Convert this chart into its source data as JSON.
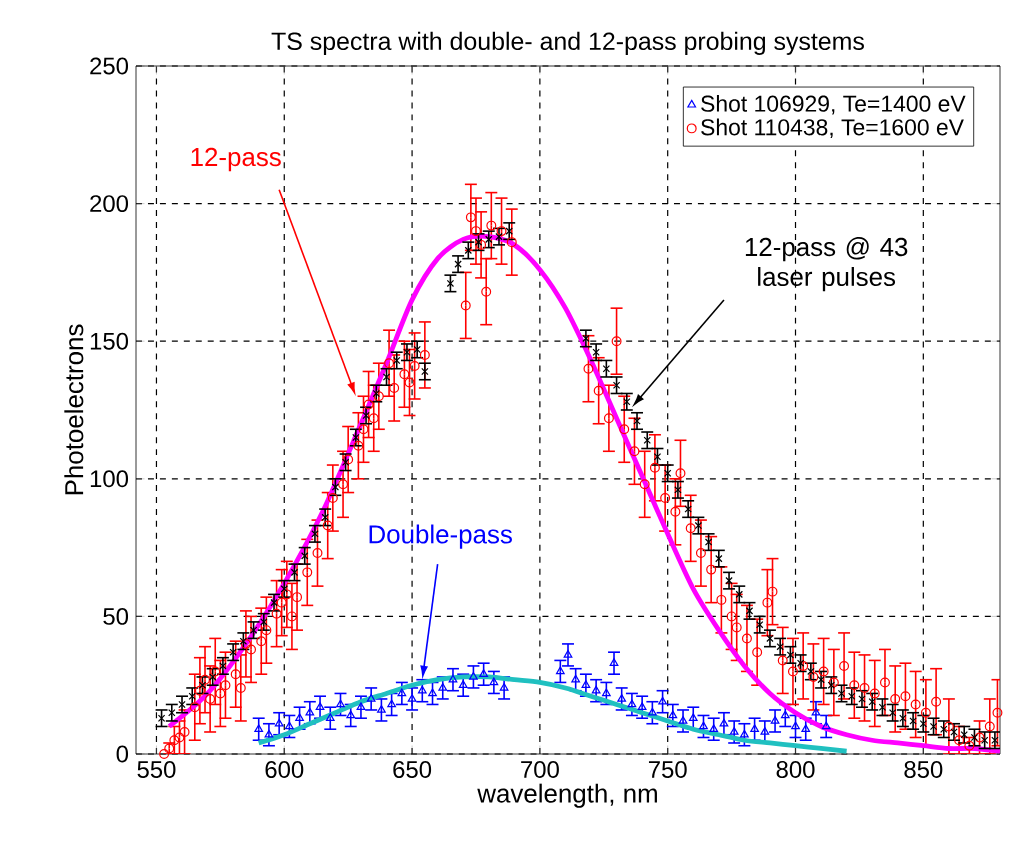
{
  "chart_data": {
    "type": "scatter",
    "title": "TS spectra with double- and 12-pass probing systems",
    "xlabel": "wavelength, nm",
    "ylabel": "Photoelectrons",
    "xlim": [
      542,
      880
    ],
    "ylim": [
      0,
      250
    ],
    "xticks": [
      550,
      600,
      650,
      700,
      750,
      800,
      850
    ],
    "yticks": [
      0,
      50,
      100,
      150,
      200,
      250
    ],
    "grid": true,
    "legend": "top right",
    "series": [
      {
        "name": "Shot 106929, Te=1400 eV",
        "marker": "triangle",
        "color": "#0000ff",
        "x": [
          590,
          594,
          598,
          602,
          606,
          610,
          614,
          618,
          622,
          626,
          630,
          634,
          638,
          642,
          646,
          650,
          654,
          658,
          662,
          666,
          670,
          674,
          678,
          682,
          686,
          708,
          711,
          714,
          718,
          722,
          726,
          729,
          732,
          736,
          740,
          744,
          748,
          752,
          756,
          760,
          764,
          768,
          772,
          776,
          780,
          784,
          788,
          792,
          796,
          800,
          804,
          808,
          812
        ],
        "values": [
          9,
          7,
          11,
          10,
          13,
          15,
          17,
          13,
          18,
          14,
          17,
          20,
          16,
          18,
          22,
          20,
          23,
          22,
          24,
          27,
          25,
          28,
          29,
          26,
          24,
          30,
          36,
          27,
          25,
          23,
          22,
          33,
          20,
          18,
          17,
          15,
          19,
          14,
          12,
          13,
          10,
          9,
          11,
          8,
          7,
          9,
          8,
          12,
          14,
          10,
          9,
          15,
          10
        ],
        "errors": [
          4,
          4,
          4,
          4,
          4,
          4,
          4,
          4,
          4,
          4,
          4,
          4,
          4,
          4,
          4,
          4,
          4,
          4,
          4,
          4,
          4,
          4,
          4,
          4,
          4,
          4,
          4,
          4,
          4,
          4,
          4,
          4,
          4,
          4,
          4,
          4,
          4,
          4,
          4,
          4,
          4,
          4,
          4,
          4,
          4,
          4,
          4,
          4,
          4,
          4,
          4,
          4,
          4
        ]
      },
      {
        "name": "Shot 110438, Te=1600 eV",
        "marker": "circle",
        "color": "#ff0000",
        "x": [
          553,
          555,
          557,
          559,
          561,
          565,
          567,
          569,
          571,
          573,
          575,
          577,
          581,
          583,
          585,
          587,
          591,
          593,
          597,
          599,
          601,
          603,
          605,
          609,
          613,
          617,
          619,
          623,
          625,
          629,
          631,
          633,
          635,
          637,
          641,
          643,
          647,
          649,
          651,
          655,
          671,
          673,
          675,
          677,
          679,
          681,
          685,
          689,
          719,
          723,
          727,
          730,
          733,
          737,
          741,
          745,
          749,
          753,
          755,
          759,
          763,
          767,
          771,
          775,
          777,
          781,
          785,
          789,
          791,
          795,
          799,
          803,
          807,
          811,
          815,
          819,
          823,
          827,
          831,
          835,
          839,
          843,
          847,
          851,
          855,
          860,
          864,
          868,
          872,
          876,
          879
        ],
        "values": [
          0,
          2,
          5,
          6,
          8,
          17,
          23,
          27,
          20,
          30,
          22,
          25,
          29,
          24,
          40,
          38,
          41,
          45,
          51,
          55,
          58,
          50,
          57,
          66,
          73,
          83,
          93,
          98,
          107,
          112,
          118,
          127,
          122,
          130,
          142,
          133,
          138,
          135,
          141,
          145,
          163,
          195,
          190,
          185,
          168,
          192,
          190,
          186,
          140,
          132,
          122,
          150,
          118,
          110,
          98,
          104,
          93,
          88,
          102,
          82,
          73,
          67,
          56,
          50,
          46,
          42,
          37,
          55,
          59,
          34,
          30,
          32,
          28,
          30,
          26,
          32,
          25,
          24,
          22,
          26,
          20,
          21,
          18,
          15,
          19,
          10,
          5,
          3,
          6,
          10,
          15
        ],
        "errors": [
          null,
          2,
          5,
          6,
          8,
          12,
          12,
          12,
          12,
          12,
          12,
          12,
          12,
          12,
          12,
          12,
          12,
          12,
          12,
          12,
          12,
          12,
          12,
          12,
          12,
          12,
          12,
          12,
          12,
          12,
          12,
          12,
          12,
          12,
          12,
          12,
          12,
          12,
          12,
          12,
          12,
          12,
          12,
          12,
          12,
          12,
          12,
          12,
          12,
          12,
          12,
          12,
          12,
          12,
          12,
          12,
          12,
          12,
          12,
          12,
          12,
          12,
          12,
          12,
          12,
          12,
          12,
          12,
          12,
          12,
          12,
          12,
          12,
          12,
          12,
          12,
          12,
          12,
          12,
          12,
          12,
          12,
          12,
          12,
          12,
          10,
          5,
          3,
          6,
          10,
          12
        ]
      },
      {
        "type": "line",
        "color": "#ff00ff",
        "x": [
          555,
          570,
          585,
          600,
          615,
          630,
          640,
          650,
          660,
          670,
          680,
          690,
          700,
          710,
          720,
          730,
          740,
          750,
          760,
          770,
          780,
          790,
          800,
          810,
          820,
          830,
          840,
          850,
          860,
          870,
          880
        ],
        "values": [
          10,
          22,
          40,
          62,
          88,
          120,
          142,
          165,
          180,
          187,
          188,
          185,
          176,
          162,
          143,
          122,
          101,
          80,
          60,
          45,
          32,
          22,
          15,
          10,
          7,
          5,
          4,
          3,
          2,
          2,
          1
        ]
      },
      {
        "marker": "cross",
        "color": "#000000",
        "x": [
          552,
          556,
          560,
          564,
          568,
          572,
          576,
          580,
          584,
          588,
          592,
          596,
          600,
          604,
          608,
          612,
          616,
          620,
          624,
          628,
          632,
          636,
          640,
          644,
          648,
          652,
          655,
          665,
          668,
          672,
          676,
          680,
          684,
          688,
          718,
          722,
          726,
          730,
          734,
          738,
          742,
          746,
          750,
          754,
          758,
          762,
          766,
          770,
          774,
          778,
          782,
          786,
          790,
          794,
          798,
          802,
          806,
          810,
          814,
          818,
          822,
          826,
          830,
          834,
          838,
          842,
          846,
          850,
          854,
          858,
          862,
          866,
          870,
          874,
          878
        ],
        "values": [
          13,
          15,
          18,
          21,
          25,
          28,
          32,
          37,
          41,
          45,
          48,
          55,
          60,
          66,
          72,
          80,
          86,
          97,
          106,
          115,
          123,
          131,
          137,
          143,
          146,
          147,
          139,
          171,
          178,
          183,
          186,
          187,
          188,
          190,
          151,
          146,
          140,
          134,
          128,
          121,
          114,
          108,
          102,
          96,
          89,
          83,
          77,
          71,
          63,
          58,
          52,
          47,
          42,
          39,
          36,
          33,
          30,
          27,
          25,
          22,
          21,
          20,
          19,
          17,
          15,
          13,
          12,
          11,
          10,
          9,
          8,
          7,
          6,
          5,
          5
        ],
        "errors": [
          3,
          3,
          3,
          3,
          3,
          3,
          3,
          3,
          3,
          3,
          3,
          3,
          3,
          3,
          3,
          3,
          3,
          3,
          3,
          3,
          3,
          3,
          3,
          3,
          3,
          3,
          3,
          3,
          3,
          3,
          3,
          3,
          3,
          3,
          3,
          3,
          3,
          3,
          3,
          3,
          3,
          3,
          3,
          3,
          3,
          3,
          3,
          3,
          3,
          3,
          3,
          3,
          3,
          3,
          3,
          3,
          3,
          3,
          3,
          3,
          3,
          3,
          3,
          3,
          3,
          3,
          3,
          3,
          3,
          3,
          3,
          3,
          3,
          3,
          3
        ]
      },
      {
        "type": "line",
        "color": "#20c0c0",
        "x": [
          590,
          600,
          610,
          620,
          630,
          640,
          650,
          660,
          670,
          680,
          690,
          700,
          710,
          720,
          730,
          740,
          750,
          760,
          770,
          780,
          790,
          800,
          810,
          820
        ],
        "values": [
          4,
          7,
          11,
          15,
          19,
          22,
          25,
          27,
          28,
          28,
          27,
          26,
          24,
          21,
          18,
          15,
          12,
          9,
          7,
          5,
          4,
          3,
          2,
          1
        ]
      }
    ],
    "annotations": [
      {
        "text": "12-pass",
        "x": 628,
        "y": 130
      },
      {
        "text": "Double-pass",
        "x": 654,
        "y": 27
      },
      {
        "text": "12-pass @ 43 laser pulses",
        "x": 736,
        "y": 126
      }
    ]
  }
}
